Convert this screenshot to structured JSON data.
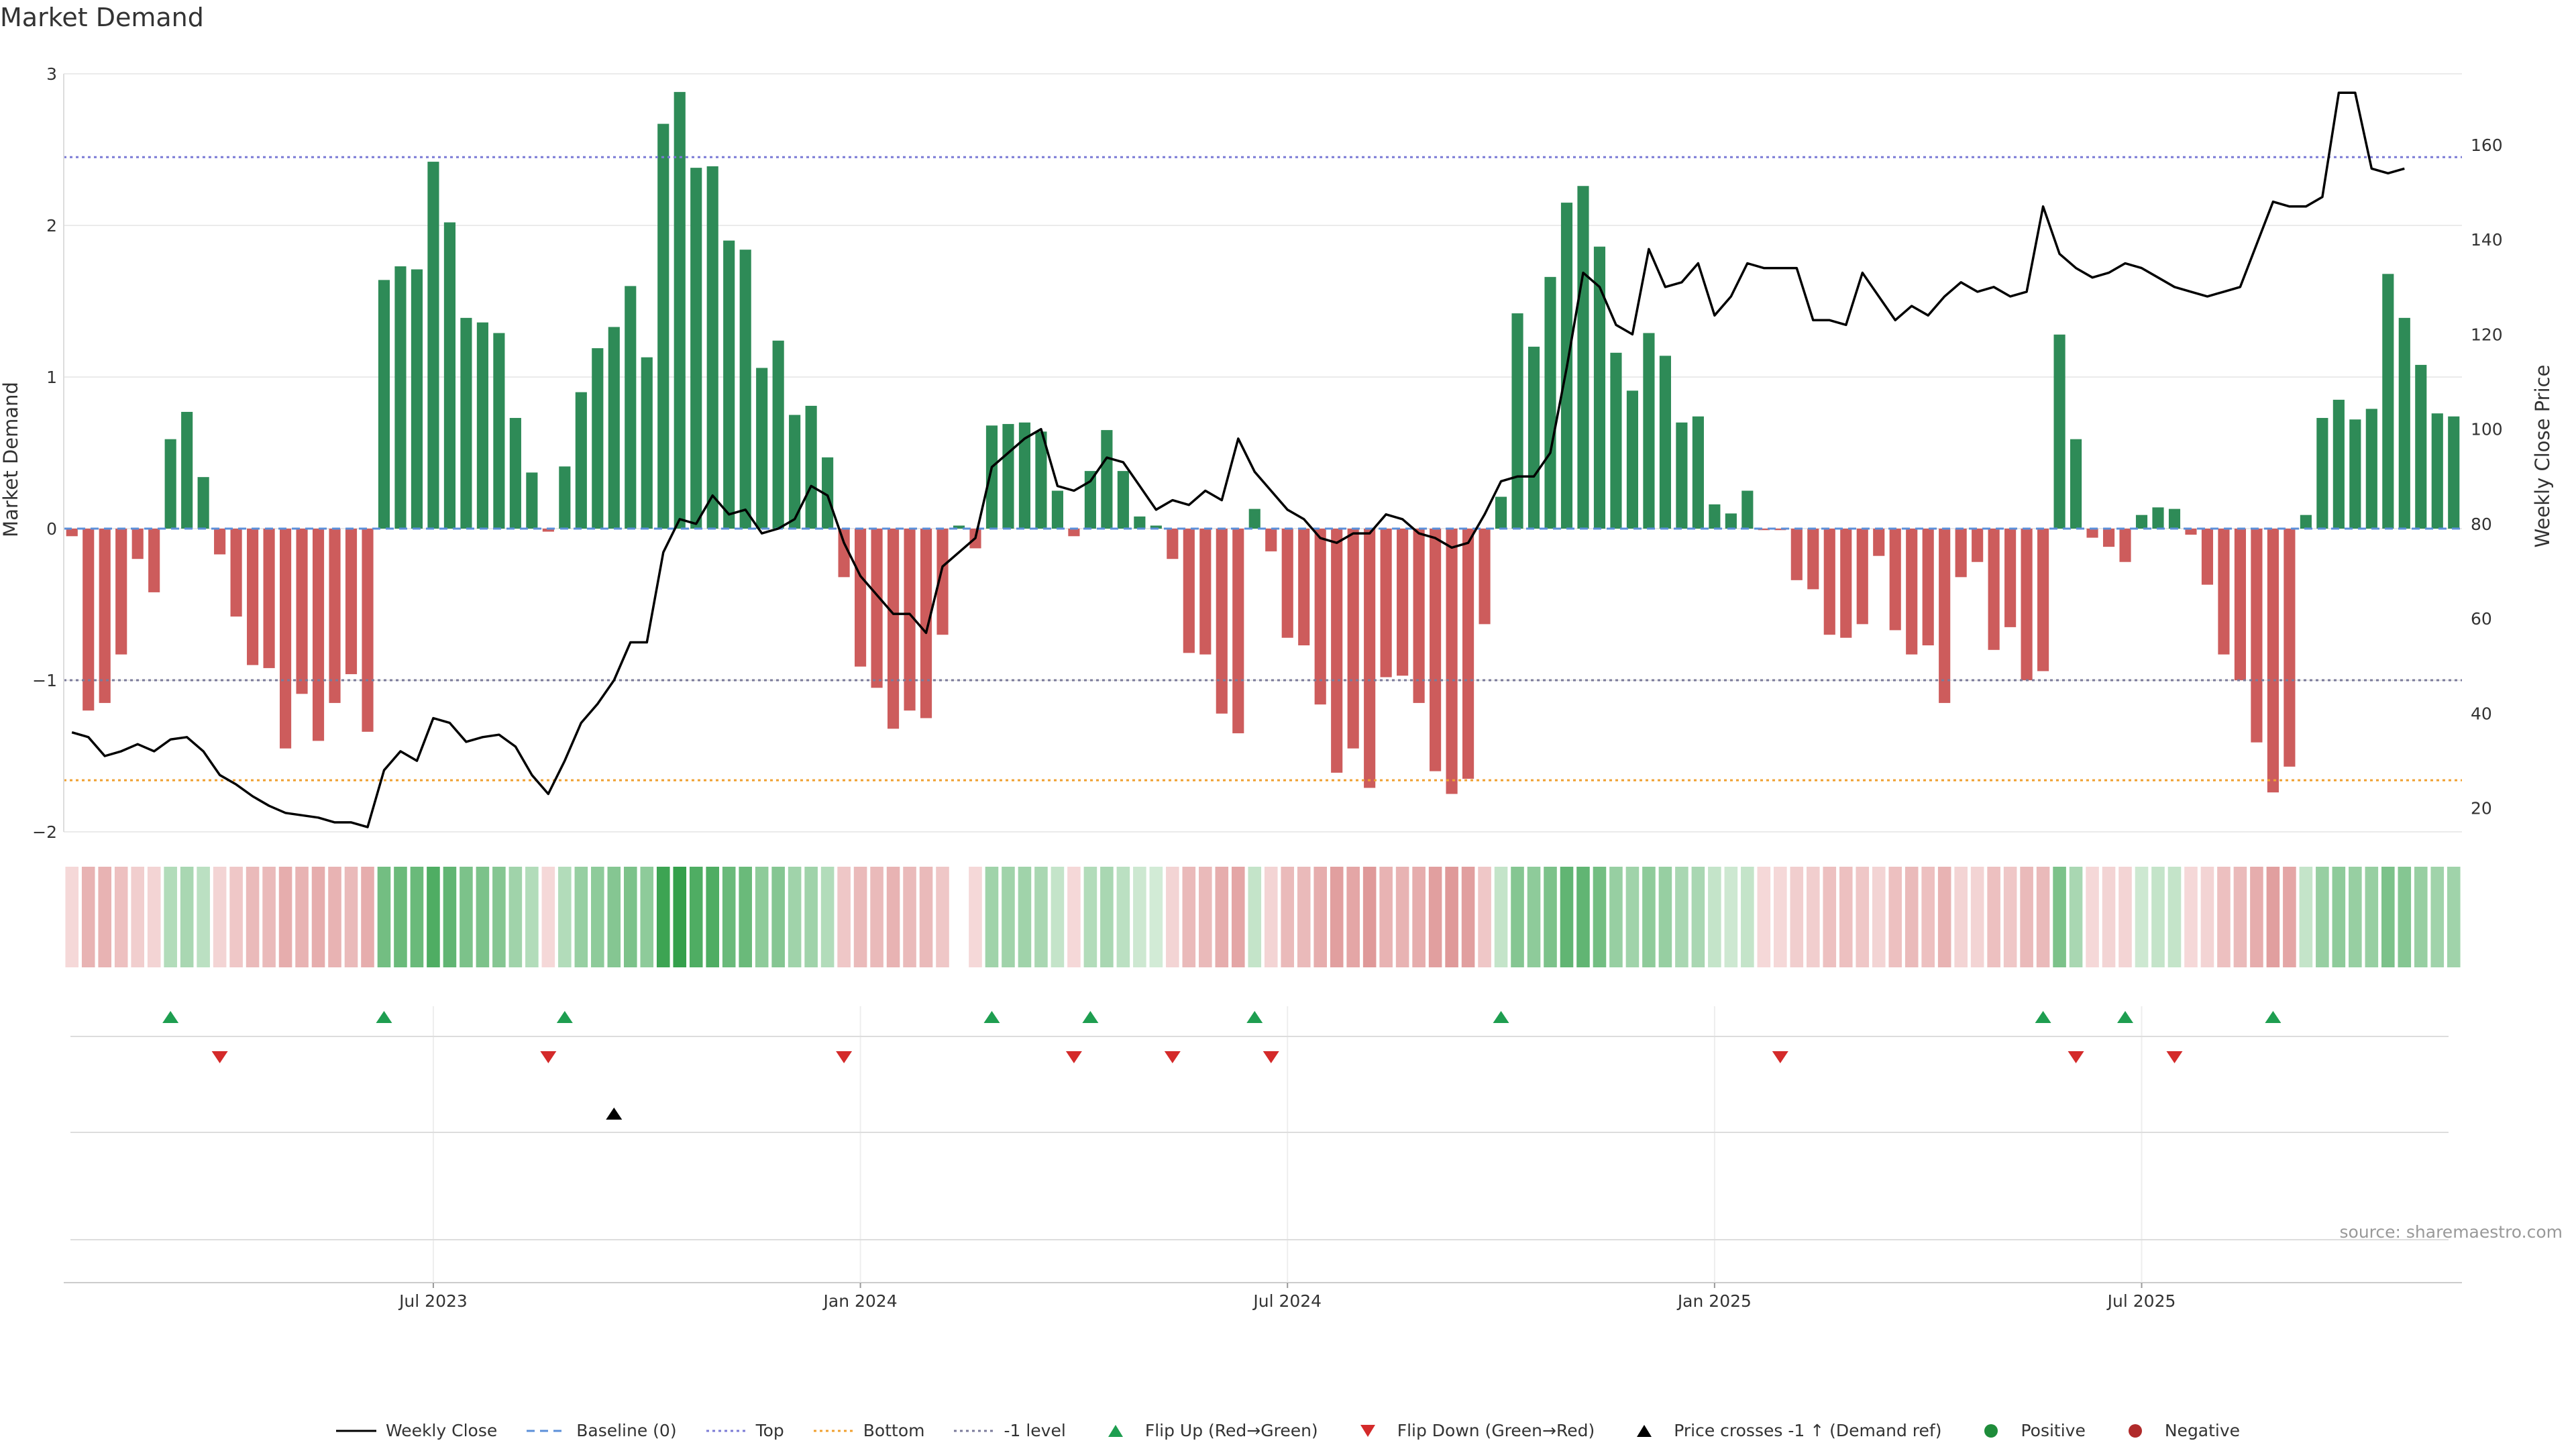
{
  "chart_data": {
    "type": "bar",
    "title": "Market Demand",
    "ylabel_left": "Market Demand",
    "ylabel_right": "Weekly Close Price",
    "ylim_left": [
      -2,
      3
    ],
    "ylim_right": [
      15,
      175
    ],
    "y_ticks_left": [
      {
        "value": 3,
        "label": "3"
      },
      {
        "value": 2,
        "label": "2"
      },
      {
        "value": 1,
        "label": "1"
      },
      {
        "value": 0,
        "label": "0"
      },
      {
        "value": -1,
        "label": "−1"
      },
      {
        "value": -2,
        "label": "−2"
      }
    ],
    "y_ticks_right": [
      {
        "value": 160,
        "label": "160"
      },
      {
        "value": 140,
        "label": "140"
      },
      {
        "value": 120,
        "label": "120"
      },
      {
        "value": 100,
        "label": "100"
      },
      {
        "value": 80,
        "label": "80"
      },
      {
        "value": 60,
        "label": "60"
      },
      {
        "value": 40,
        "label": "40"
      },
      {
        "value": 20,
        "label": "20"
      }
    ],
    "x_ticks": [
      {
        "index": 22,
        "label": "Jul 2023"
      },
      {
        "index": 48,
        "label": "Jan 2024"
      },
      {
        "index": 74,
        "label": "Jul 2024"
      },
      {
        "index": 100,
        "label": "Jan 2025"
      },
      {
        "index": 126,
        "label": "Jul 2025"
      }
    ],
    "demand": [
      -0.05,
      -1.2,
      -1.15,
      -0.83,
      -0.2,
      -0.42,
      0.59,
      0.77,
      0.34,
      -0.17,
      -0.58,
      -0.9,
      -0.92,
      -1.45,
      -1.09,
      -1.4,
      -1.15,
      -0.96,
      -1.34,
      1.64,
      1.73,
      1.71,
      2.42,
      2.02,
      1.39,
      1.36,
      1.29,
      0.73,
      0.37,
      -0.02,
      0.41,
      0.9,
      1.19,
      1.33,
      1.6,
      1.13,
      2.67,
      2.88,
      2.38,
      2.39,
      1.9,
      1.84,
      1.06,
      1.24,
      0.75,
      0.81,
      0.47,
      -0.32,
      -0.91,
      -1.05,
      -1.32,
      -1.2,
      -1.25,
      -0.7,
      0.02,
      -0.13,
      0.68,
      0.69,
      0.7,
      0.64,
      0.25,
      -0.05,
      0.38,
      0.65,
      0.38,
      0.08,
      0.02,
      -0.2,
      -0.82,
      -0.83,
      -1.22,
      -1.35,
      0.13,
      -0.15,
      -0.72,
      -0.77,
      -1.16,
      -1.61,
      -1.45,
      -1.71,
      -0.98,
      -0.97,
      -1.15,
      -1.6,
      -1.75,
      -1.65,
      -0.63,
      0.21,
      1.42,
      1.2,
      1.66,
      2.15,
      2.26,
      1.86,
      1.16,
      0.91,
      1.29,
      1.14,
      0.7,
      0.74,
      0.16,
      0.1,
      0.25,
      -0.01,
      -0.01,
      -0.34,
      -0.4,
      -0.7,
      -0.72,
      -0.63,
      -0.18,
      -0.67,
      -0.83,
      -0.77,
      -1.15,
      -0.32,
      -0.22,
      -0.8,
      -0.65,
      -1.0,
      -0.94,
      1.28,
      0.59,
      -0.06,
      -0.12,
      -0.22,
      0.09,
      0.14,
      0.13,
      -0.04,
      -0.37,
      -0.83,
      -1.0,
      -1.41,
      -1.74,
      -1.57,
      0.09,
      0.73,
      0.85,
      0.72,
      0.79,
      1.68,
      1.39,
      1.08,
      0.76,
      0.74
    ],
    "close": [
      36,
      35,
      31,
      32,
      33.5,
      32,
      34.5,
      35,
      32,
      27,
      25,
      22.5,
      20.5,
      19,
      18.5,
      18,
      17,
      17,
      16,
      28,
      32,
      30,
      39,
      38,
      34,
      35,
      35.5,
      33,
      27,
      23,
      30,
      38,
      42,
      47,
      55,
      55,
      74,
      81,
      80,
      86,
      82,
      83,
      78,
      79,
      81,
      88,
      86,
      76,
      69,
      65,
      61,
      61,
      57,
      71,
      74,
      77,
      92,
      95,
      98,
      100,
      88,
      87,
      89,
      94,
      93,
      88,
      83,
      85,
      84,
      87,
      85,
      98,
      91,
      87,
      83,
      81,
      77,
      76,
      78,
      78,
      82,
      81,
      78,
      77,
      75,
      76,
      82,
      89,
      90,
      90,
      95,
      113,
      133,
      130,
      122,
      120,
      138,
      130,
      131,
      135,
      124,
      128,
      135,
      134,
      134,
      134,
      123,
      123,
      122,
      133,
      128,
      123,
      126,
      124,
      128,
      131,
      129,
      130,
      128,
      129,
      147,
      137,
      134,
      132,
      133,
      135,
      134,
      132,
      130,
      129,
      128,
      129,
      130,
      139,
      148,
      147,
      147,
      149,
      171,
      171,
      155,
      154,
      155
    ],
    "color_strip": [
      0.12,
      0.4,
      0.4,
      0.3,
      0.2,
      0.15,
      0.3,
      0.35,
      0.25,
      0.15,
      0.25,
      0.35,
      0.35,
      0.45,
      0.4,
      0.45,
      0.4,
      0.35,
      0.45,
      0.65,
      0.7,
      0.7,
      0.85,
      0.75,
      0.6,
      0.6,
      0.55,
      0.4,
      0.3,
      0.12,
      0.3,
      0.45,
      0.5,
      0.55,
      0.6,
      0.5,
      0.95,
      1.0,
      0.85,
      0.85,
      0.7,
      0.7,
      0.5,
      0.55,
      0.4,
      0.4,
      0.3,
      0.25,
      0.35,
      0.35,
      0.4,
      0.35,
      0.35,
      0.25,
      null,
      0.12,
      0.4,
      0.4,
      0.4,
      0.35,
      0.2,
      0.12,
      0.3,
      0.35,
      0.25,
      0.15,
      0.12,
      0.15,
      0.35,
      0.35,
      0.45,
      0.5,
      0.2,
      0.15,
      0.35,
      0.35,
      0.45,
      0.55,
      0.5,
      0.6,
      0.4,
      0.4,
      0.45,
      0.55,
      0.6,
      0.55,
      0.25,
      0.2,
      0.55,
      0.5,
      0.6,
      0.75,
      0.75,
      0.65,
      0.45,
      0.4,
      0.5,
      0.45,
      0.35,
      0.35,
      0.2,
      0.15,
      0.2,
      0.12,
      0.12,
      0.2,
      0.2,
      0.3,
      0.3,
      0.25,
      0.15,
      0.3,
      0.35,
      0.3,
      0.4,
      0.15,
      0.15,
      0.3,
      0.25,
      0.35,
      0.35,
      0.6,
      0.35,
      0.12,
      0.15,
      0.15,
      0.15,
      0.2,
      0.2,
      0.12,
      0.15,
      0.3,
      0.35,
      0.45,
      0.55,
      0.5,
      0.2,
      0.45,
      0.5,
      0.45,
      0.45,
      0.6,
      0.55,
      0.45,
      0.4,
      0.4
    ],
    "flip_up_weeks": [
      6,
      19,
      30,
      56,
      62,
      72,
      87,
      120,
      125,
      134
    ],
    "flip_down_weeks": [
      9,
      29,
      47,
      61,
      67,
      73,
      104,
      122,
      128
    ],
    "price_cross_weeks": [
      33
    ],
    "reference_lines": {
      "top": {
        "value": 2.45,
        "color": "#7b7bd6"
      },
      "bottom": {
        "value": -1.66,
        "color": "#f0a030"
      },
      "minus_one": {
        "value": -1,
        "color": "#7a7a9a"
      },
      "baseline": {
        "value": 0,
        "color": "#5b8fd9"
      }
    },
    "colors": {
      "positive_bar": "#2e8b57",
      "negative_bar": "#cd5c5c",
      "close_line": "#000000",
      "flip_up": "#1e9e50",
      "flip_down": "#d42a2a",
      "price_cross": "#000000",
      "positive_dot": "#1e8c3a",
      "negative_dot": "#b02a2a"
    },
    "legend": [
      {
        "key": "weekly_close",
        "label": "Weekly Close",
        "kind": "line",
        "color": "#000000",
        "dash": ""
      },
      {
        "key": "baseline",
        "label": "Baseline (0)",
        "kind": "line",
        "color": "#5b8fd9",
        "dash": "12,8"
      },
      {
        "key": "top",
        "label": "Top",
        "kind": "line",
        "color": "#7b7bd6",
        "dash": "4,5"
      },
      {
        "key": "bottom",
        "label": "Bottom",
        "kind": "line",
        "color": "#f0a030",
        "dash": "4,5"
      },
      {
        "key": "minus_one",
        "label": "-1 level",
        "kind": "line",
        "color": "#7a7a9a",
        "dash": "4,5"
      },
      {
        "key": "flip_up",
        "label": "Flip Up (Red→Green)",
        "kind": "tri-up",
        "color": "#1e9e50"
      },
      {
        "key": "flip_down",
        "label": "Flip Down (Green→Red)",
        "kind": "tri-down",
        "color": "#d42a2a"
      },
      {
        "key": "price_cross",
        "label": "Price crosses -1 ↑ (Demand ref)",
        "kind": "tri-up",
        "color": "#000000"
      },
      {
        "key": "positive",
        "label": "Positive",
        "kind": "dot",
        "color": "#1e8c3a"
      },
      {
        "key": "negative",
        "label": "Negative",
        "kind": "dot",
        "color": "#b02a2a"
      }
    ]
  },
  "source_text": "source: sharemaestro.com"
}
